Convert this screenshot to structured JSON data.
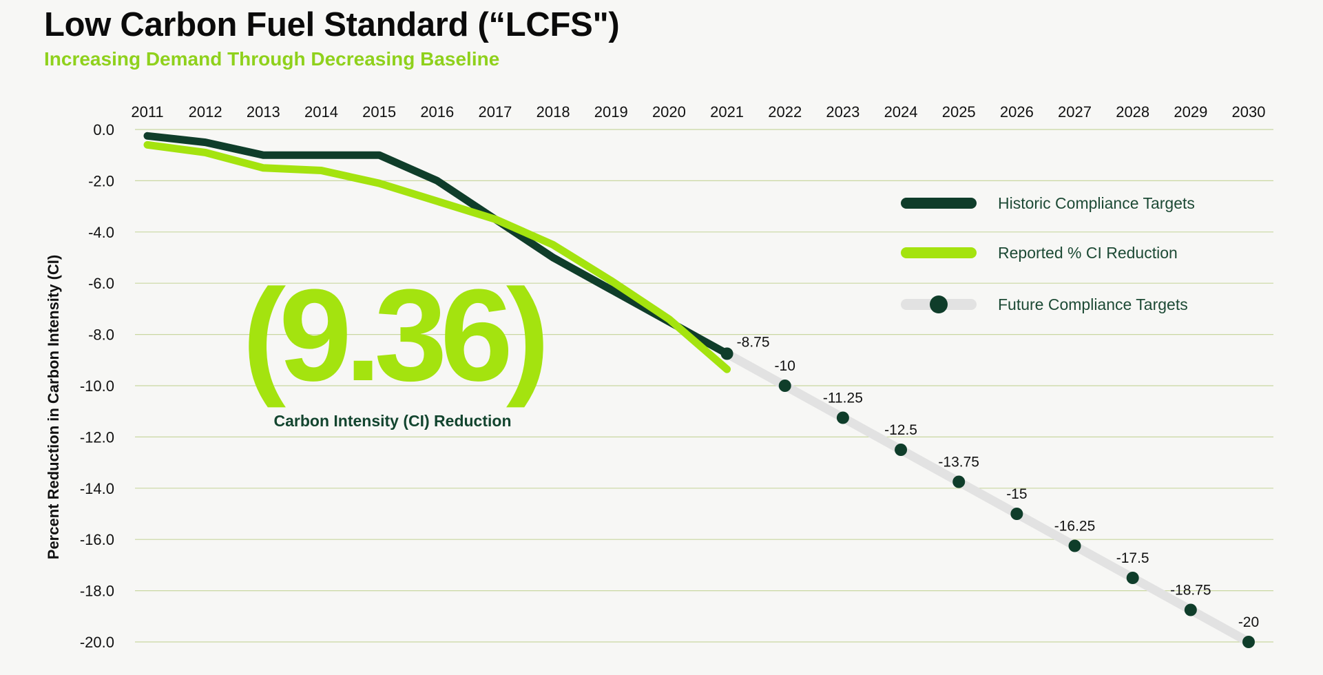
{
  "header": {
    "title": "Low Carbon Fuel Standard (“LCFS\")",
    "subtitle": "Increasing Demand Through Decreasing Baseline"
  },
  "highlight": {
    "value": "(9.36)",
    "caption": "Carbon Intensity (CI) Reduction"
  },
  "colors": {
    "historic": "#0f3d2a",
    "reported": "#a4e30f",
    "future_line": "#e2e2e2",
    "future_dot": "#0f3d2a",
    "grid": "#c9d7a0",
    "accent": "#8fd11c"
  },
  "chart_data": {
    "type": "line",
    "title": "Low Carbon Fuel Standard (“LCFS\")",
    "xlabel": "",
    "ylabel": "Percent Reduction in Carbon Intensity (CI)",
    "x": [
      "2011",
      "2012",
      "2013",
      "2014",
      "2015",
      "2016",
      "2017",
      "2018",
      "2019",
      "2020",
      "2021",
      "2022",
      "2023",
      "2024",
      "2025",
      "2026",
      "2027",
      "2028",
      "2029",
      "2030"
    ],
    "ylim": [
      -20,
      0
    ],
    "yticks": [
      "0.0",
      "-2.0",
      "-4.0",
      "-6.0",
      "-8.0",
      "-10.0",
      "-12.0",
      "-14.0",
      "-16.0",
      "-18.0",
      "-20.0"
    ],
    "grid": true,
    "legend_position": "right",
    "series": [
      {
        "name": "Historic Compliance Targets",
        "x": [
          "2011",
          "2012",
          "2013",
          "2014",
          "2015",
          "2016",
          "2017",
          "2018",
          "2019",
          "2020",
          "2021"
        ],
        "values": [
          -0.25,
          -0.5,
          -1.0,
          -1.0,
          -1.0,
          -2.0,
          -3.5,
          -5.0,
          -6.25,
          -7.5,
          -8.75
        ]
      },
      {
        "name": "Reported % CI Reduction",
        "x": [
          "2011",
          "2012",
          "2013",
          "2014",
          "2015",
          "2016",
          "2017",
          "2018",
          "2019",
          "2020",
          "2021"
        ],
        "values": [
          -0.6,
          -0.9,
          -1.5,
          -1.6,
          -2.1,
          -2.8,
          -3.5,
          -4.5,
          -5.9,
          -7.4,
          -9.36
        ]
      },
      {
        "name": "Future Compliance Targets",
        "x": [
          "2021",
          "2022",
          "2023",
          "2024",
          "2025",
          "2026",
          "2027",
          "2028",
          "2029",
          "2030"
        ],
        "values": [
          -8.75,
          -10,
          -11.25,
          -12.5,
          -13.75,
          -15,
          -16.25,
          -17.5,
          -18.75,
          -20
        ],
        "labels": [
          "-8.75",
          "-10",
          "-11.25",
          "-12.5",
          "-13.75",
          "-15",
          "-16.25",
          "-17.5",
          "-18.75",
          "-20"
        ]
      }
    ]
  }
}
